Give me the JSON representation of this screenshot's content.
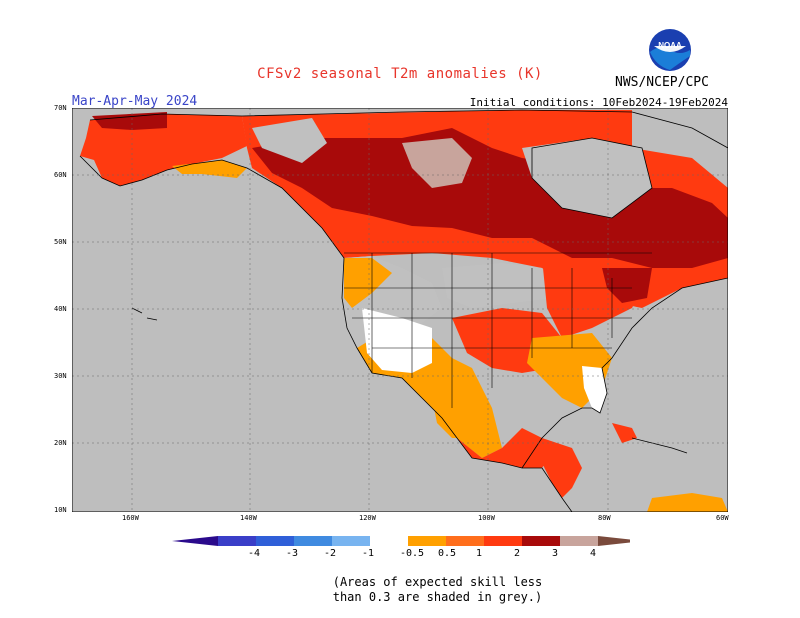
{
  "title": "CFSv2 seasonal T2m anomalies (K)",
  "period": "Mar-Apr-May 2024",
  "initial_conditions": "Initial conditions: 10Feb2024-19Feb2024",
  "agency": "NWS/NCEP/CPC",
  "logo_text": "NOAA",
  "lat_labels": [
    "70N",
    "60N",
    "50N",
    "40N",
    "30N",
    "20N",
    "10N"
  ],
  "lon_labels": [
    "160W",
    "140W",
    "120W",
    "100W",
    "80W",
    "60W"
  ],
  "colorbar": {
    "labels": [
      "-4",
      "-3",
      "-2",
      "-1",
      "-0.5",
      "0.5",
      "1",
      "2",
      "3",
      "4"
    ],
    "colors": [
      "#2a0a8c",
      "#3a3ec8",
      "#2f5fd8",
      "#3f8ae0",
      "#78b4f0",
      "#ffffff",
      "#ffa000",
      "#ff6e1c",
      "#ff3a10",
      "#a80a0a",
      "#c8a49c",
      "#7a4a3c"
    ]
  },
  "footnote": [
    "(Areas of expected skill less",
    "than 0.3 are shaded in grey.)"
  ],
  "map_colors": {
    "ocean": "#bebebe",
    "grey_land": "#c0c0c0",
    "white": "#ffffff",
    "orange": "#ffa000",
    "red_orange": "#ff3a10",
    "dark_red": "#a80a0a",
    "brown": "#c8a49c"
  }
}
